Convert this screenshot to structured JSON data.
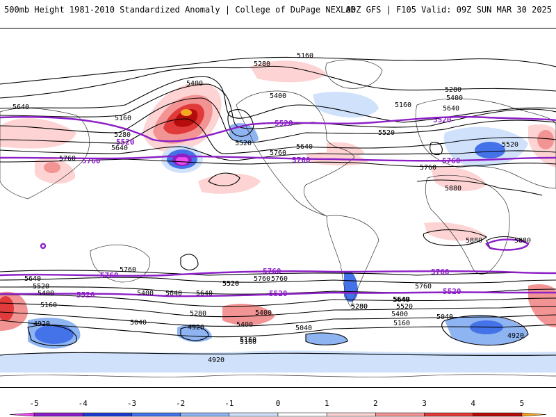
{
  "header": {
    "title": "500mb Height 1981-2010 Standardized Anomaly | College of DuPage NEXLAB",
    "run_info": "00Z GFS | F105 Valid: 09Z SUN MAR 30 2025"
  },
  "colors": {
    "anomaly_scale": [
      {
        "min": -5.5,
        "max": -5,
        "color": "#ee4bee"
      },
      {
        "min": -5,
        "max": -4,
        "color": "#8c1fc7"
      },
      {
        "min": -4,
        "max": -3,
        "color": "#1e3ccf"
      },
      {
        "min": -3,
        "max": -2,
        "color": "#4472e8"
      },
      {
        "min": -2,
        "max": -1,
        "color": "#8fb4f2"
      },
      {
        "min": -1,
        "max": 0,
        "color": "#cfe1fb"
      },
      {
        "min": 0,
        "max": 1,
        "color": "#ffffff"
      },
      {
        "min": 1,
        "max": 2,
        "color": "#fdd3d3"
      },
      {
        "min": 2,
        "max": 3,
        "color": "#f39494"
      },
      {
        "min": 3,
        "max": 4,
        "color": "#e03a3a"
      },
      {
        "min": 4,
        "max": 5,
        "color": "#b50c0c"
      },
      {
        "min": 5,
        "max": 5.5,
        "color": "#f5a623"
      }
    ],
    "purple_contour": "#8c1fc7",
    "black_contour": "#000000"
  },
  "colorbar": {
    "ticks": [
      "-5",
      "-4",
      "-3",
      "-2",
      "-1",
      "0",
      "1",
      "2",
      "3",
      "4",
      "5"
    ]
  },
  "contour_labels": {
    "black": [
      "5160",
      "5280",
      "5400",
      "5160",
      "5280",
      "5400",
      "5520",
      "5640",
      "5760",
      "5280",
      "5160",
      "5400",
      "5520",
      "5640",
      "5760",
      "5880",
      "5640",
      "5520",
      "5640",
      "5760",
      "5880",
      "5880",
      "5760",
      "5640",
      "5520",
      "5400",
      "5160",
      "4920",
      "5760",
      "5640",
      "5520",
      "5400",
      "5280",
      "5160",
      "5040",
      "4920",
      "5400",
      "5160",
      "4920",
      "5040",
      "5280",
      "5640",
      "5760",
      "5280",
      "5520",
      "5640",
      "5400",
      "5160",
      "5040",
      "4920",
      "5760",
      "5640",
      "5520",
      "5400"
    ],
    "purple": [
      "5520",
      "5760",
      "5520",
      "5760",
      "5520",
      "5760",
      "5760",
      "5520",
      "5760",
      "5520",
      "5520",
      "5760"
    ]
  }
}
